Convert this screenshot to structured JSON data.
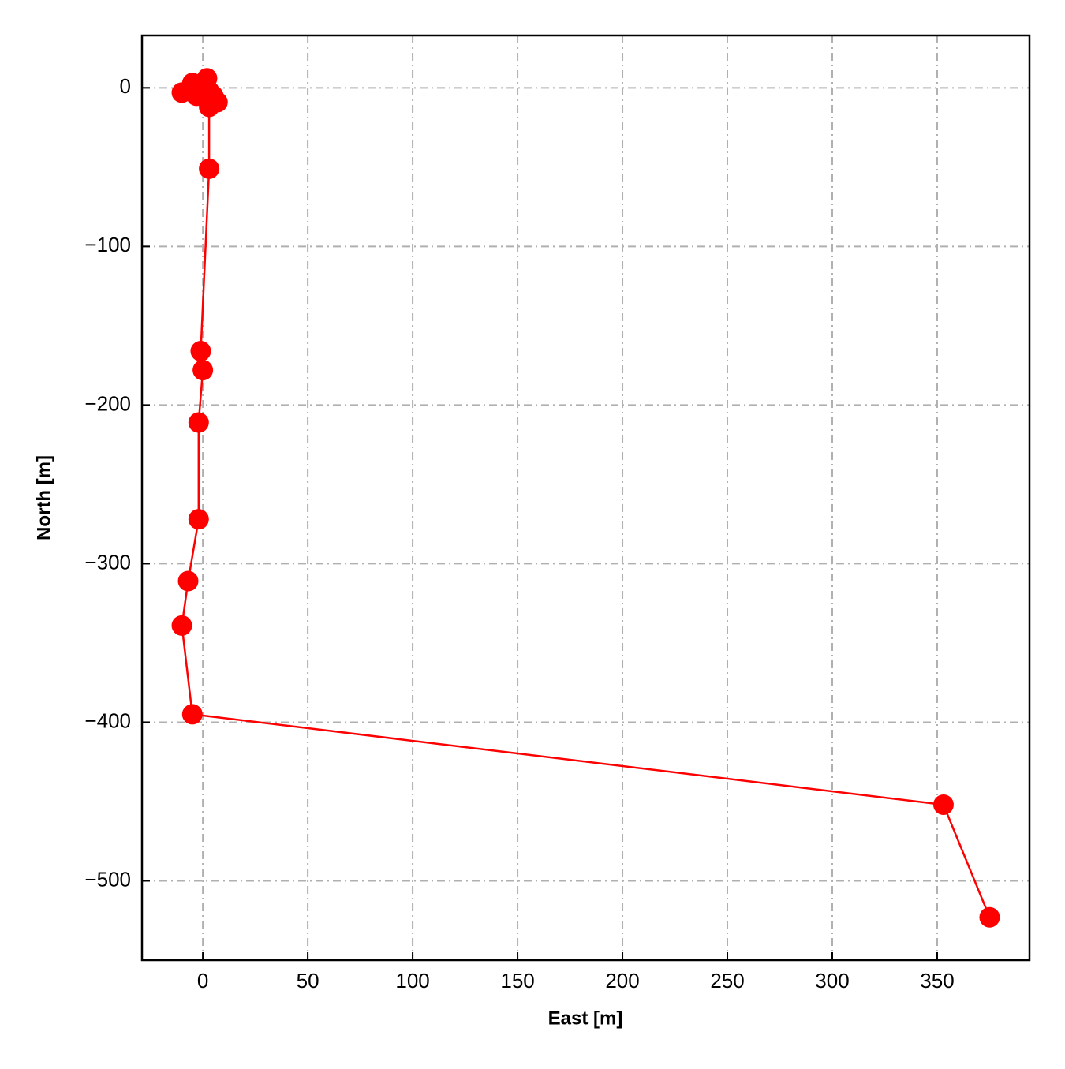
{
  "chart_data": {
    "type": "line",
    "x_label": "East [m]",
    "y_label": "North [m]",
    "x": [
      -2,
      -5,
      -10,
      -3,
      0,
      2,
      3,
      5,
      7,
      3,
      3,
      -1,
      0,
      -2,
      -2,
      -7,
      -10,
      -5,
      353,
      375
    ],
    "series": [
      {
        "color": "#ff0000",
        "values": [
          2,
          3,
          -3,
          -5,
          0,
          6,
          -2,
          -5,
          -9,
          -12,
          -51,
          -166,
          -178,
          -211,
          -272,
          -311,
          -339,
          -395,
          -452,
          -523
        ]
      }
    ],
    "xlim": [
      -29,
      394
    ],
    "ylim": [
      -550,
      33
    ],
    "xticks": [
      0,
      50,
      100,
      150,
      200,
      250,
      300,
      350
    ],
    "yticks": [
      {
        "value": -500,
        "label": "−500"
      },
      {
        "value": -400,
        "label": "−400"
      },
      {
        "value": -300,
        "label": "−300"
      },
      {
        "value": -200,
        "label": "−200"
      },
      {
        "value": -100,
        "label": "−100"
      },
      0
    ],
    "grid": true,
    "markers": true
  }
}
